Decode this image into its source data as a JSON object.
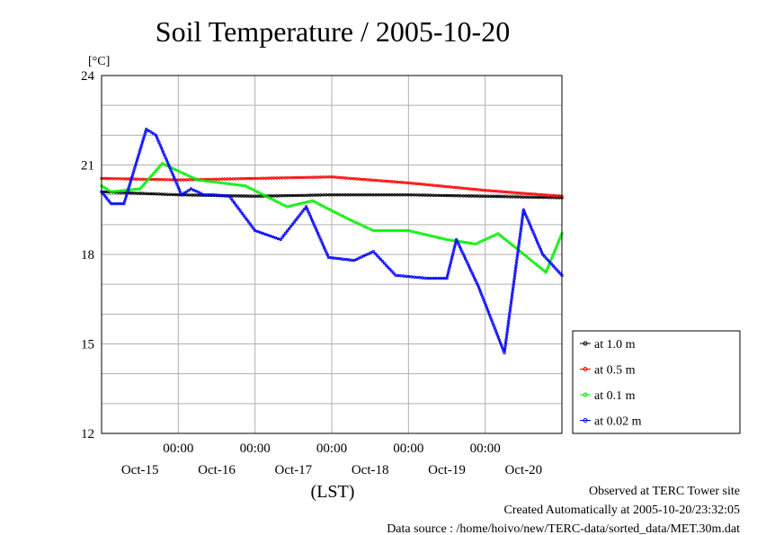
{
  "chart_data": {
    "type": "line",
    "title": "Soil Temperature / 2005-10-20",
    "ylabel": "[°C]",
    "xlabel": "(LST)",
    "ylim": [
      12,
      24
    ],
    "y_ticks": [
      12,
      15,
      18,
      21,
      24
    ],
    "xlim": [
      "2005-10-14T00:00",
      "2005-10-20T00:00"
    ],
    "x_tick_time_labels": [
      "00:00",
      "00:00",
      "00:00",
      "00:00",
      "00:00"
    ],
    "x_tick_dates": [
      "2005-10-15T00:00",
      "2005-10-16T00:00",
      "2005-10-17T00:00",
      "2005-10-18T00:00",
      "2005-10-19T00:00"
    ],
    "x_day_labels": [
      "Oct-15",
      "Oct-16",
      "Oct-17",
      "Oct-18",
      "Oct-19",
      "Oct-20"
    ],
    "x_day_label_dates": [
      "2005-10-14T12:00",
      "2005-10-15T12:00",
      "2005-10-16T12:00",
      "2005-10-17T12:00",
      "2005-10-18T12:00",
      "2005-10-19T12:00"
    ],
    "grid": true,
    "legend_placement": "right-bottom",
    "series": [
      {
        "name": "at 1.0 m",
        "color": "#000000",
        "x": [
          "2005-10-14T00:00",
          "2005-10-15T00:00",
          "2005-10-16T00:00",
          "2005-10-17T00:00",
          "2005-10-18T00:00",
          "2005-10-19T00:00",
          "2005-10-20T00:00"
        ],
        "y": [
          20.1,
          20.0,
          19.95,
          20.0,
          20.0,
          19.95,
          19.9
        ]
      },
      {
        "name": "at 0.5 m",
        "color": "#ff0000",
        "x": [
          "2005-10-14T00:00",
          "2005-10-15T00:00",
          "2005-10-16T00:00",
          "2005-10-17T00:00",
          "2005-10-17T12:00",
          "2005-10-18T00:00",
          "2005-10-19T00:00",
          "2005-10-20T00:00"
        ],
        "y": [
          20.55,
          20.5,
          20.55,
          20.6,
          20.5,
          20.4,
          20.15,
          19.95
        ]
      },
      {
        "name": "at 0.1 m",
        "color": "#00ee00",
        "x": [
          "2005-10-14T00:00",
          "2005-10-14T03:00",
          "2005-10-14T12:00",
          "2005-10-14T19:00",
          "2005-10-15T06:00",
          "2005-10-15T21:00",
          "2005-10-16T10:00",
          "2005-10-16T18:00",
          "2005-10-17T05:00",
          "2005-10-17T13:00",
          "2005-10-18T00:00",
          "2005-10-18T12:00",
          "2005-10-18T21:00",
          "2005-10-19T04:00",
          "2005-10-19T11:00",
          "2005-10-19T19:00",
          "2005-10-20T00:00"
        ],
        "y": [
          20.3,
          20.1,
          20.2,
          21.05,
          20.5,
          20.3,
          19.6,
          19.8,
          19.2,
          18.8,
          18.8,
          18.5,
          18.35,
          18.7,
          18.1,
          17.4,
          18.7
        ]
      },
      {
        "name": "at 0.02 m",
        "color": "#0000ff",
        "x": [
          "2005-10-14T00:00",
          "2005-10-14T03:00",
          "2005-10-14T07:00",
          "2005-10-14T14:00",
          "2005-10-14T17:00",
          "2005-10-15T01:00",
          "2005-10-15T04:00",
          "2005-10-15T08:00",
          "2005-10-15T11:00",
          "2005-10-15T16:00",
          "2005-10-16T00:00",
          "2005-10-16T08:00",
          "2005-10-16T16:00",
          "2005-10-16T23:00",
          "2005-10-17T07:00",
          "2005-10-17T13:00",
          "2005-10-17T20:00",
          "2005-10-18T06:00",
          "2005-10-18T12:00",
          "2005-10-18T15:00",
          "2005-10-18T22:00",
          "2005-10-19T06:00",
          "2005-10-19T12:00",
          "2005-10-19T18:00",
          "2005-10-20T00:00"
        ],
        "y": [
          20.1,
          19.7,
          19.7,
          22.2,
          22.0,
          20.0,
          20.2,
          20.0,
          20.0,
          19.95,
          18.8,
          18.5,
          19.6,
          17.9,
          17.8,
          18.1,
          17.3,
          17.2,
          17.2,
          18.5,
          16.9,
          14.7,
          19.5,
          18.0,
          17.3
        ]
      }
    ]
  },
  "footer": {
    "line1": "Observed at TERC Tower site",
    "line2": "Created Automatically at 2005-10-20/23:32:05",
    "line3": "Data source : /home/hoivo/new/TERC-data/sorted_data/MET.30m.dat"
  }
}
